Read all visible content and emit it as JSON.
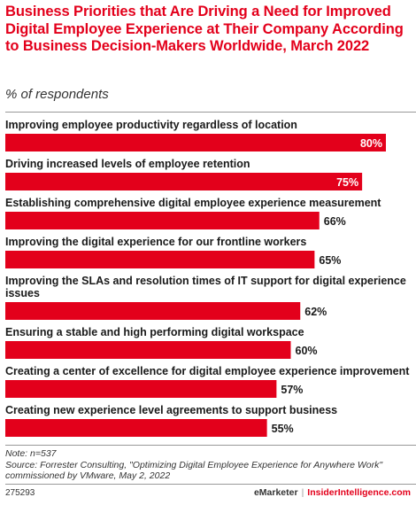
{
  "title": "Business Priorities that Are Driving a Need for Improved Digital Employee Experience at Their Company According to Business Decision-Makers Worldwide, March 2022",
  "subtitle": "% of respondents",
  "colors": {
    "bar": "#e3001b",
    "title": "#e3001b"
  },
  "chart_data": {
    "type": "bar",
    "orientation": "horizontal",
    "categories": [
      "Improving employee productivity regardless of location",
      "Driving increased levels of employee retention",
      "Establishing comprehensive digital employee experience measurement",
      "Improving the digital experience for our frontline workers",
      "Improving the SLAs and resolution times of IT support for digital experience issues",
      "Ensuring a stable and high performing digital workspace",
      "Creating a center of excellence for digital employee experience improvement",
      "Creating new experience level agreements to support business"
    ],
    "values": [
      80,
      75,
      66,
      65,
      62,
      60,
      57,
      55
    ],
    "value_labels": [
      "80%",
      "75%",
      "66%",
      "65%",
      "62%",
      "60%",
      "57%",
      "55%"
    ],
    "xlim": [
      0,
      80
    ],
    "grid": false,
    "legend": "none"
  },
  "footer": {
    "note": "Note: n=537",
    "source": "Source: Forrester Consulting, \"Optimizing Digital Employee Experience for Anywhere Work\" commissioned by VMware, May 2, 2022",
    "chart_id": "275293",
    "brand_left": "eMarketer",
    "brand_sep": "|",
    "brand_right": "InsiderIntelligence.com"
  }
}
